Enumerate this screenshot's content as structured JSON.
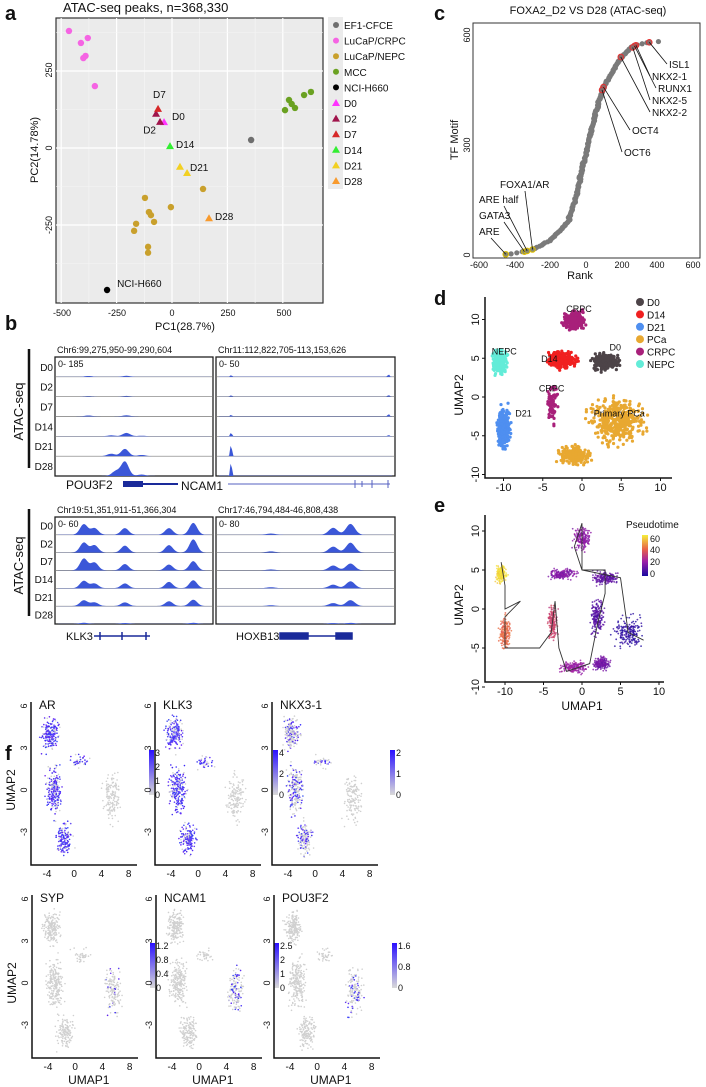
{
  "panel_labels": {
    "a": "a",
    "b": "b",
    "c": "c",
    "d": "d",
    "e": "e",
    "f": "f"
  },
  "chart_data": [
    {
      "panel": "a",
      "type": "scatter",
      "title": "ATAC-seq peaks, n=368,330",
      "xlabel": "PC1(28.7%)",
      "ylabel": "PC2(14.78%)",
      "xlim": [
        -560,
        640
      ],
      "ylim": [
        -500,
        430
      ],
      "xticks": [
        "-500",
        "-250",
        "0",
        "250",
        "500"
      ],
      "yticks": [
        "-250",
        "0",
        "250"
      ],
      "grid": true,
      "legend": "right",
      "series": [
        {
          "name": "EF1-CFCE",
          "color": "#6e6e6e",
          "marker": "circle",
          "points": [
            [
              357,
              26
            ]
          ]
        },
        {
          "name": "LuCaP/CRPC",
          "color": "#f564e3",
          "marker": "circle",
          "points": [
            [
              -465,
              380
            ],
            [
              -411,
              341
            ],
            [
              -380,
              357
            ],
            [
              -400,
              292
            ],
            [
              -390,
              299
            ],
            [
              -348,
              201
            ]
          ]
        },
        {
          "name": "LuCaP/NEPC",
          "color": "#c9a02c",
          "marker": "circle",
          "points": [
            [
              140,
              -133
            ],
            [
              -122,
              -162
            ],
            [
              -5,
              -192
            ],
            [
              -104,
              -208
            ],
            [
              -95,
              -218
            ],
            [
              -81,
              -240
            ],
            [
              -162,
              -246
            ],
            [
              -171,
              -269
            ],
            [
              -108,
              -321
            ],
            [
              -108,
              -340
            ]
          ]
        },
        {
          "name": "MCC",
          "color": "#6aa121",
          "marker": "circle",
          "points": [
            [
              510,
              123
            ],
            [
              528,
              156
            ],
            [
              540,
              143
            ],
            [
              555,
              130
            ],
            [
              596,
              172
            ],
            [
              627,
              182
            ]
          ]
        },
        {
          "name": "NCI-H660",
          "color": "#000000",
          "marker": "circle",
          "points": [
            [
              -293,
              -461
            ]
          ],
          "label": "NCI-H660"
        },
        {
          "name": "D0",
          "color": "#ff33ff",
          "marker": "triangle",
          "points": [
            [
              -36,
              84
            ]
          ],
          "label": "D0"
        },
        {
          "name": "D2",
          "color": "#a0144b",
          "marker": "triangle",
          "points": [
            [
              -72,
              111
            ],
            [
              -54,
              85
            ]
          ],
          "label": "D2"
        },
        {
          "name": "D7",
          "color": "#d62828",
          "marker": "triangle",
          "points": [
            [
              -63,
              127
            ]
          ],
          "label": "D7"
        },
        {
          "name": "D14",
          "color": "#33ee33",
          "marker": "triangle",
          "points": [
            [
              -9,
              6
            ]
          ],
          "label": "D14"
        },
        {
          "name": "D21",
          "color": "#f2d022",
          "marker": "triangle",
          "points": [
            [
              36,
              -61
            ],
            [
              68,
              -81
            ]
          ],
          "label": "D21"
        },
        {
          "name": "D28",
          "color": "#f89a2d",
          "marker": "triangle",
          "points": [
            [
              167,
              -228
            ]
          ],
          "label": "D28"
        }
      ]
    },
    {
      "panel": "b",
      "type": "area",
      "ylabel": "ATAC-seq",
      "samples": [
        "D0",
        "D2",
        "D7",
        "D14",
        "D21",
        "D28"
      ],
      "loci": [
        {
          "region": "Chr6:99,275,950-99,290,604",
          "range": "0- 185",
          "gene": "POU3F2",
          "peaks": [
            [
              [
                0.2,
                8
              ],
              [
                0.45,
                10
              ]
            ],
            [
              [
                0.2,
                5
              ],
              [
                0.45,
                7
              ]
            ],
            [
              [
                0.2,
                10
              ],
              [
                0.45,
                12
              ]
            ],
            [
              [
                0.45,
                35
              ],
              [
                0.35,
                10
              ],
              [
                0.55,
                6
              ]
            ],
            [
              [
                0.44,
                75
              ],
              [
                0.35,
                25
              ],
              [
                0.55,
                12
              ]
            ],
            [
              [
                0.44,
                150
              ],
              [
                0.38,
                50
              ],
              [
                0.55,
                15
              ]
            ]
          ]
        },
        {
          "region": "Chr11:112,822,705-113,153,626",
          "range": "0- 50",
          "gene": "NCAM1",
          "peaks": [
            [
              [
                0.07,
                5
              ],
              [
                0.98,
                8
              ]
            ],
            [
              [
                0.07,
                4
              ],
              [
                0.98,
                5
              ]
            ],
            [
              [
                0.07,
                5
              ],
              [
                0.98,
                8
              ]
            ],
            [
              [
                0.07,
                12
              ],
              [
                0.98,
                4
              ]
            ],
            [
              [
                0.07,
                40
              ]
            ],
            [
              [
                0.07,
                48
              ]
            ]
          ]
        },
        {
          "region": "Chr19:51,351,911-51,366,304",
          "range": "0- 60",
          "gene": "KLK3",
          "peaks": [
            [
              [
                0.17,
                40
              ],
              [
                0.24,
                25
              ],
              [
                0.44,
                25
              ],
              [
                0.73,
                25
              ],
              [
                0.89,
                45
              ]
            ],
            [
              [
                0.17,
                38
              ],
              [
                0.24,
                28
              ],
              [
                0.44,
                26
              ],
              [
                0.73,
                28
              ],
              [
                0.89,
                50
              ]
            ],
            [
              [
                0.17,
                45
              ],
              [
                0.24,
                30
              ],
              [
                0.44,
                24
              ],
              [
                0.73,
                22
              ],
              [
                0.89,
                35
              ]
            ],
            [
              [
                0.17,
                28
              ],
              [
                0.24,
                18
              ],
              [
                0.44,
                18
              ],
              [
                0.73,
                24
              ],
              [
                0.89,
                30
              ]
            ],
            [
              [
                0.17,
                22
              ],
              [
                0.24,
                14
              ],
              [
                0.44,
                14
              ],
              [
                0.73,
                18
              ],
              [
                0.89,
                24
              ]
            ],
            [
              [
                0.17,
                4
              ],
              [
                0.44,
                3
              ],
              [
                0.89,
                4
              ]
            ]
          ]
        },
        {
          "region": "Chr17:46,794,484-46,808,438",
          "range": "0- 80",
          "gene": "HOXB13",
          "peaks": [
            [
              [
                0.66,
                35
              ],
              [
                0.76,
                55
              ],
              [
                0.3,
                6
              ]
            ],
            [
              [
                0.66,
                30
              ],
              [
                0.76,
                50
              ],
              [
                0.3,
                6
              ]
            ],
            [
              [
                0.66,
                25
              ],
              [
                0.76,
                35
              ],
              [
                0.3,
                5
              ]
            ],
            [
              [
                0.66,
                18
              ],
              [
                0.76,
                35
              ],
              [
                0.3,
                5
              ]
            ],
            [
              [
                0.66,
                15
              ],
              [
                0.76,
                30
              ],
              [
                0.3,
                4
              ]
            ],
            [
              [
                0.66,
                4
              ],
              [
                0.76,
                5
              ]
            ]
          ]
        }
      ]
    },
    {
      "panel": "c",
      "type": "scatter",
      "title": "FOXA2_D2 VS D28 (ATAC-seq)",
      "xlabel": "Rank",
      "ylabel": "TF Motif",
      "xlim": [
        -600,
        600
      ],
      "ylim": [
        0,
        600
      ],
      "xticks": [
        "-600",
        "-400",
        "-200",
        "0",
        "200",
        "400",
        "600"
      ],
      "yticks": [
        "0",
        "300",
        "600"
      ],
      "curve": [
        [
          -450,
          0
        ],
        [
          -300,
          15
        ],
        [
          -200,
          40
        ],
        [
          -100,
          90
        ],
        [
          -50,
          170
        ],
        [
          0,
          280
        ],
        [
          50,
          380
        ],
        [
          100,
          460
        ],
        [
          200,
          540
        ],
        [
          260,
          570
        ],
        [
          350,
          580
        ],
        [
          430,
          583
        ]
      ],
      "highlights": [
        {
          "label": "ARE",
          "x": -450,
          "y": 2,
          "color": "#e0c000"
        },
        {
          "label": "GATA3",
          "x": -345,
          "y": 9,
          "color": "#e0c000"
        },
        {
          "label": "ARE half",
          "x": -330,
          "y": 11,
          "color": "#e0c000"
        },
        {
          "label": "FOXA1/AR",
          "x": -300,
          "y": 15,
          "color": "#e0c000"
        },
        {
          "label": "ISL1",
          "x": 355,
          "y": 580,
          "color": "#e53030"
        },
        {
          "label": "NKX2-1",
          "x": 280,
          "y": 572,
          "color": "#e53030"
        },
        {
          "label": "RUNX1",
          "x": 272,
          "y": 570,
          "color": "#e53030"
        },
        {
          "label": "NKX2-5",
          "x": 262,
          "y": 566,
          "color": "#e53030"
        },
        {
          "label": "NKX2-2",
          "x": 195,
          "y": 540,
          "color": "#e53030"
        },
        {
          "label": "OCT4",
          "x": 98,
          "y": 458,
          "color": "#e53030"
        },
        {
          "label": "OCT6",
          "x": 90,
          "y": 450,
          "color": "#e53030"
        }
      ]
    },
    {
      "panel": "d",
      "type": "scatter",
      "xlabel": "",
      "ylabel": "UMAP2",
      "xlim": [
        -13,
        11
      ],
      "ylim": [
        -10.5,
        13
      ],
      "xticks": [
        "-10",
        "-5",
        "0",
        "5",
        "10"
      ],
      "yticks": [
        "-10",
        "-5",
        "0",
        "5",
        "10"
      ],
      "legend": "top-right",
      "clusters": [
        {
          "name": "D0",
          "color": "#4d4448",
          "label": "D0",
          "center": [
            3,
            4.5
          ],
          "spread": [
            2.2,
            1.5
          ]
        },
        {
          "name": "D14",
          "color": "#f02020",
          "label": "D14",
          "center": [
            -2.5,
            4.8
          ],
          "spread": [
            2.5,
            1.5
          ]
        },
        {
          "name": "D21",
          "color": "#4f8ff0",
          "label": "D21",
          "center": [
            -10,
            -4
          ],
          "spread": [
            1.1,
            3.5
          ]
        },
        {
          "name": "PCa",
          "color": "#e8a831",
          "label": "Primary PCa",
          "center": [
            4.5,
            -3
          ],
          "spread": [
            4.5,
            4
          ]
        },
        {
          "name": "CRPC",
          "color": "#a8207a",
          "label": "CRPC",
          "center": [
            -1,
            10
          ],
          "spread": [
            1.8,
            1.6
          ]
        },
        {
          "name": "NEPC",
          "color": "#63ecd8",
          "label": "NEPC",
          "center": [
            -10.5,
            4.5
          ],
          "spread": [
            1.2,
            2
          ]
        }
      ],
      "extra_labels": [
        "CRPC"
      ]
    },
    {
      "panel": "e",
      "type": "scatter",
      "xlabel": "UMAP1",
      "ylabel": "UMAP2",
      "xlim": [
        -13,
        11
      ],
      "ylim": [
        -10.5,
        12
      ],
      "xticks": [
        "-10",
        "-5",
        "0",
        "5",
        "10"
      ],
      "yticks": [
        "-10",
        "-5",
        "0",
        "5",
        "10"
      ],
      "legend_title": "Pseudotime",
      "colorbar_ticks": [
        "60",
        "40",
        "20",
        "0"
      ],
      "colorbar_range": [
        0,
        65
      ]
    },
    {
      "panel": "f",
      "type": "scatter",
      "xlabel": "UMAP1",
      "ylabel": "UMAP2",
      "xticks": [
        "-4",
        "0",
        "4",
        "8"
      ],
      "yticks": [
        "-3",
        "0",
        "3",
        "6"
      ],
      "genes": [
        {
          "name": "AR",
          "region": "left",
          "colorbar_ticks": [
            "3",
            "2",
            "1",
            "0"
          ],
          "max": 3.5
        },
        {
          "name": "KLK3",
          "region": "left",
          "colorbar_ticks": [
            "4",
            "2",
            "0"
          ],
          "max": 4.5
        },
        {
          "name": "NKX3-1",
          "region": "left",
          "colorbar_ticks": [
            "2",
            "1",
            "0"
          ],
          "max": 2.3
        },
        {
          "name": "SYP",
          "region": "right",
          "colorbar_ticks": [
            "1.2",
            "0.8",
            "0.4",
            "0"
          ],
          "max": 1.4
        },
        {
          "name": "NCAM1",
          "region": "right",
          "colorbar_ticks": [
            "2.5",
            "2",
            "1",
            "0"
          ],
          "max": 2.6
        },
        {
          "name": "POU3F2",
          "region": "right",
          "colorbar_ticks": [
            "1.6",
            "0.8",
            "0"
          ],
          "max": 1.7
        }
      ]
    }
  ]
}
